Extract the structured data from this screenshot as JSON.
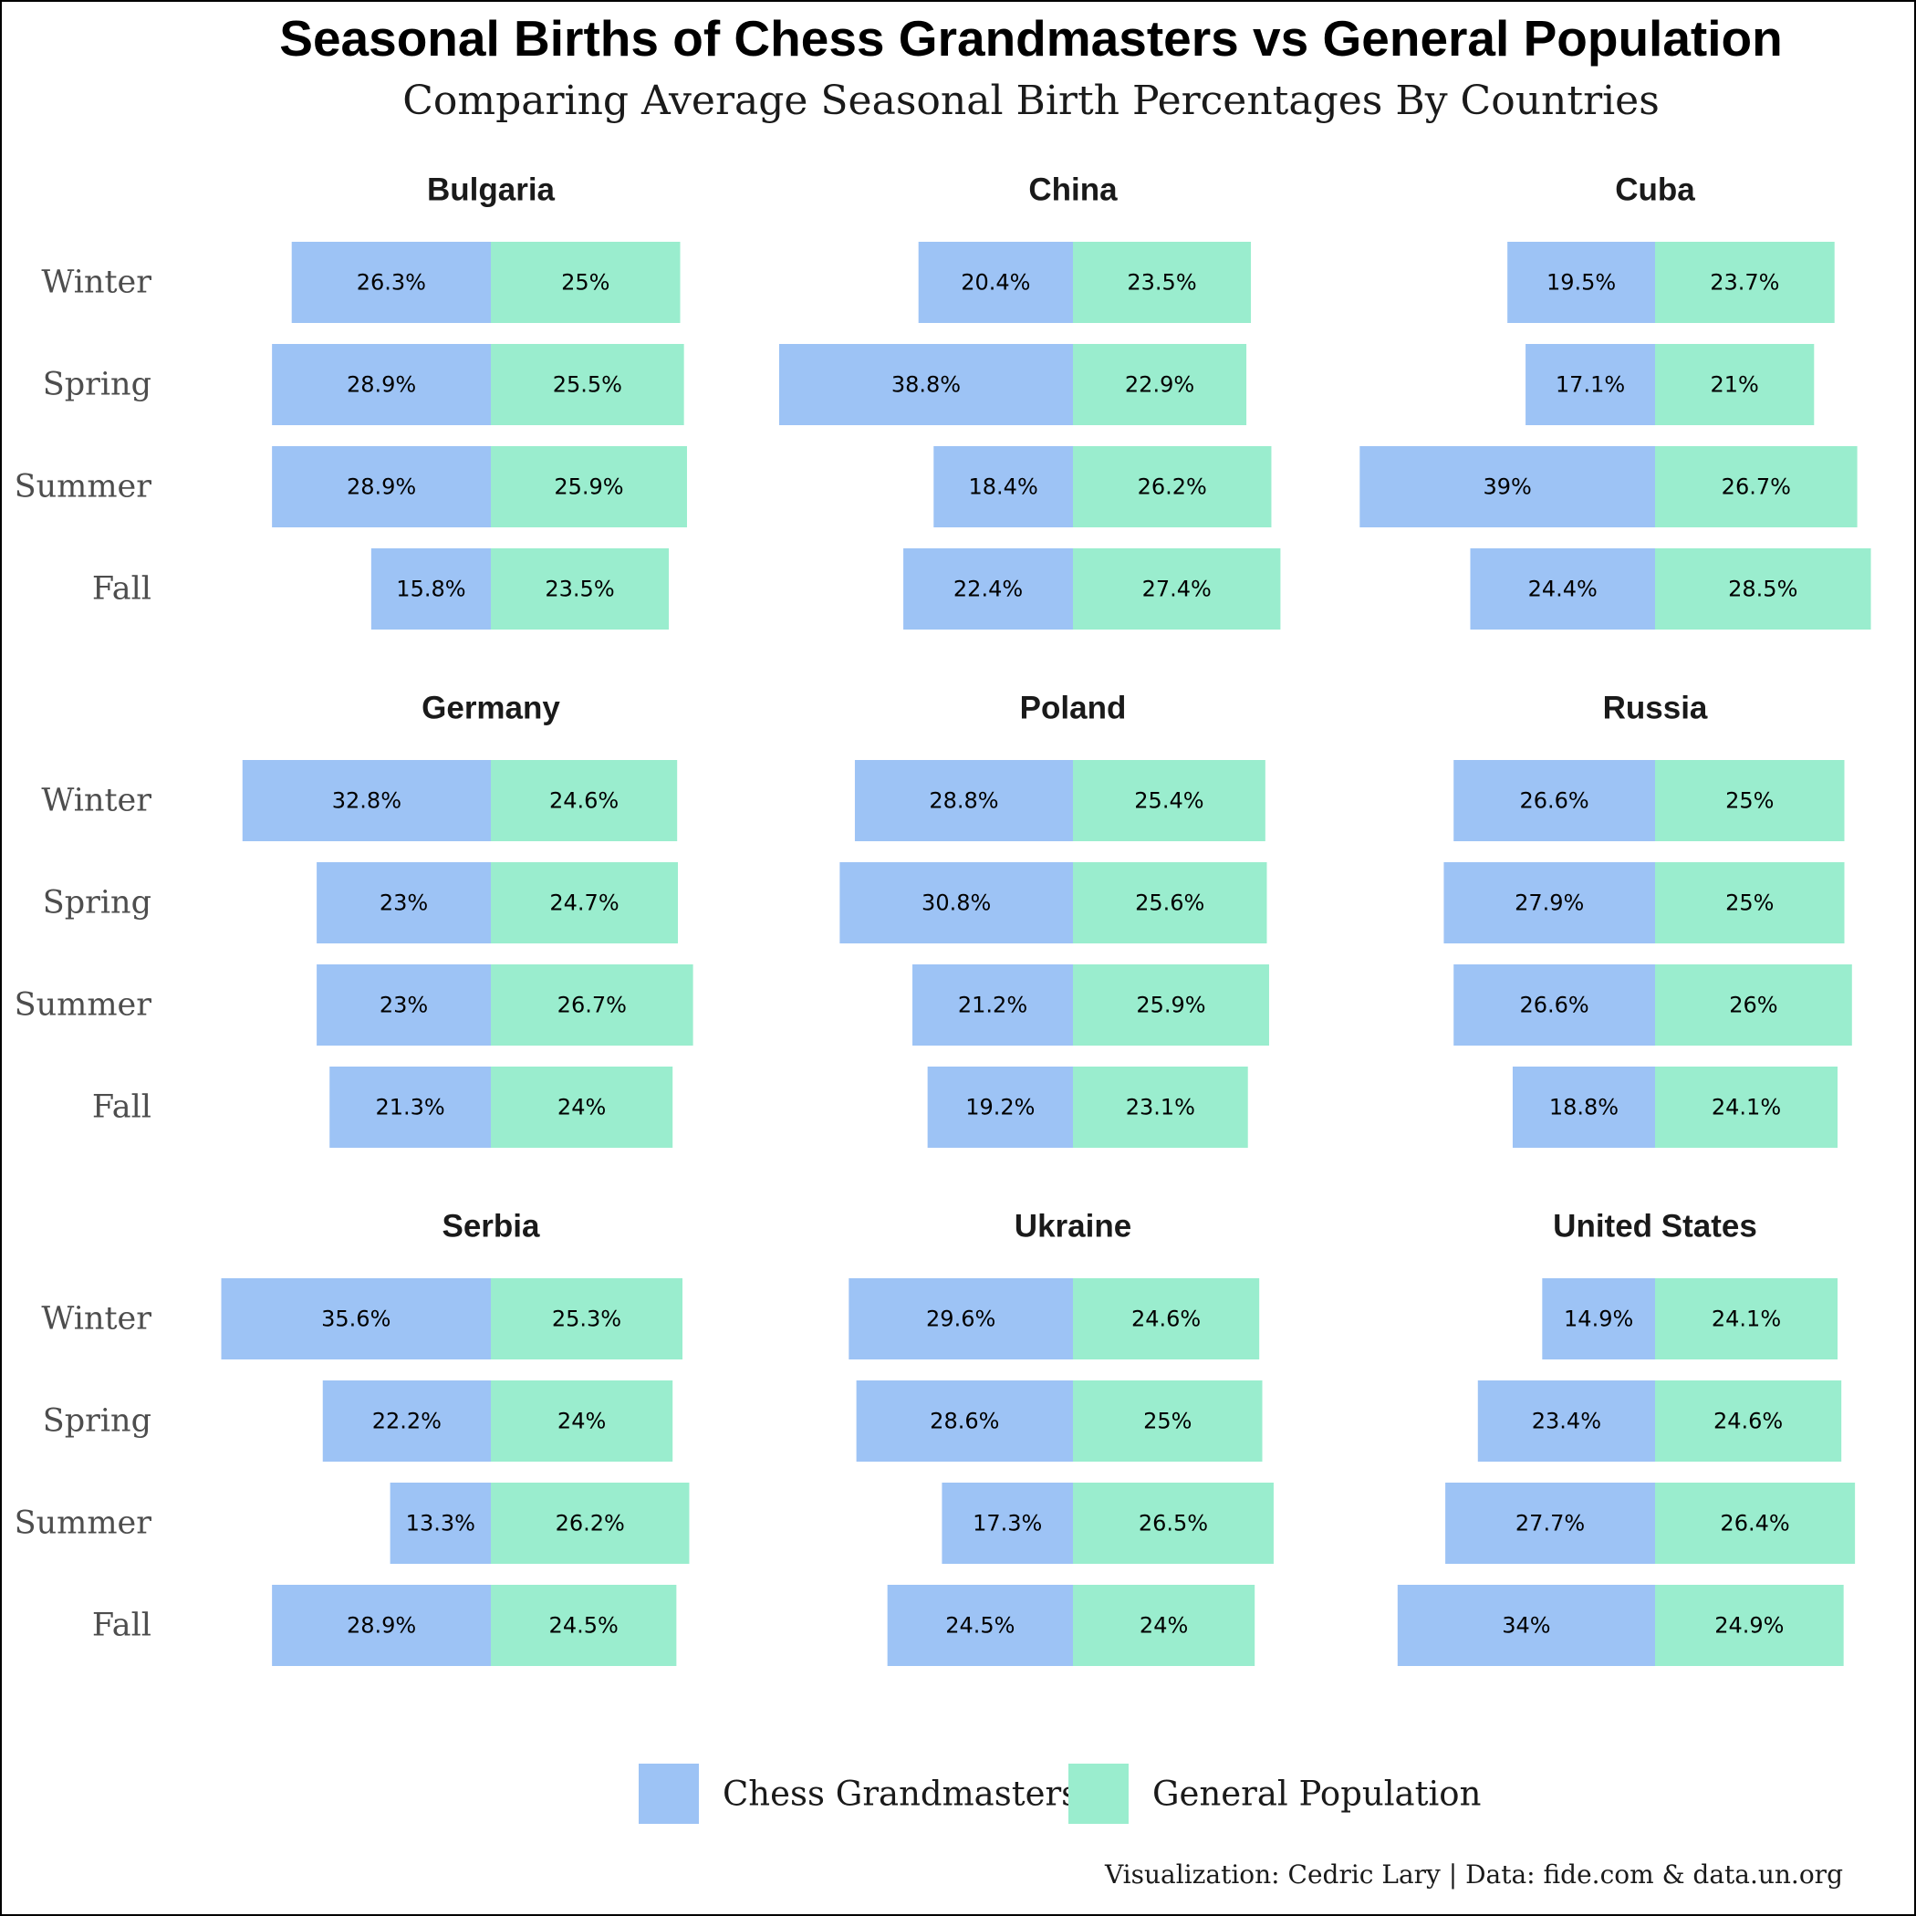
{
  "title": "Seasonal Births of Chess Grandmasters vs General Population",
  "subtitle": "Comparing Average Seasonal Birth Percentages By Countries",
  "caption": "Visualization: Cedric Lary | Data: fide.com & data.un.org",
  "colors": {
    "grandmasters": "#9dc3f5",
    "population": "#9aedce"
  },
  "chart_data": {
    "type": "bar",
    "orientation": "diverging-horizontal",
    "seasons": [
      "Winter",
      "Spring",
      "Summer",
      "Fall"
    ],
    "legend": {
      "position": "bottom",
      "entries": [
        "Chess Grandmasters",
        "General Population"
      ]
    },
    "panels": [
      {
        "country": "Bulgaria",
        "grandmasters": [
          26.3,
          28.9,
          28.9,
          15.8
        ],
        "grandmasters_labels": [
          "26.3%",
          "28.9%",
          "28.9%",
          "15.8%"
        ],
        "population": [
          25,
          25.5,
          25.9,
          23.5
        ],
        "population_labels": [
          "25%",
          "25.5%",
          "25.9%",
          "23.5%"
        ]
      },
      {
        "country": "China",
        "grandmasters": [
          20.4,
          38.8,
          18.4,
          22.4
        ],
        "grandmasters_labels": [
          "20.4%",
          "38.8%",
          "18.4%",
          "22.4%"
        ],
        "population": [
          23.5,
          22.9,
          26.2,
          27.4
        ],
        "population_labels": [
          "23.5%",
          "22.9%",
          "26.2%",
          "27.4%"
        ]
      },
      {
        "country": "Cuba",
        "grandmasters": [
          19.5,
          17.1,
          39,
          24.4
        ],
        "grandmasters_labels": [
          "19.5%",
          "17.1%",
          "39%",
          "24.4%"
        ],
        "population": [
          23.7,
          21,
          26.7,
          28.5
        ],
        "population_labels": [
          "23.7%",
          "21%",
          "26.7%",
          "28.5%"
        ]
      },
      {
        "country": "Germany",
        "grandmasters": [
          32.8,
          23,
          23,
          21.3
        ],
        "grandmasters_labels": [
          "32.8%",
          "23%",
          "23%",
          "21.3%"
        ],
        "population": [
          24.6,
          24.7,
          26.7,
          24
        ],
        "population_labels": [
          "24.6%",
          "24.7%",
          "26.7%",
          "24%"
        ]
      },
      {
        "country": "Poland",
        "grandmasters": [
          28.8,
          30.8,
          21.2,
          19.2
        ],
        "grandmasters_labels": [
          "28.8%",
          "30.8%",
          "21.2%",
          "19.2%"
        ],
        "population": [
          25.4,
          25.6,
          25.9,
          23.1
        ],
        "population_labels": [
          "25.4%",
          "25.6%",
          "25.9%",
          "23.1%"
        ]
      },
      {
        "country": "Russia",
        "grandmasters": [
          26.6,
          27.9,
          26.6,
          18.8
        ],
        "grandmasters_labels": [
          "26.6%",
          "27.9%",
          "26.6%",
          "18.8%"
        ],
        "population": [
          25,
          25,
          26,
          24.1
        ],
        "population_labels": [
          "25%",
          "25%",
          "26%",
          "24.1%"
        ]
      },
      {
        "country": "Serbia",
        "grandmasters": [
          35.6,
          22.2,
          13.3,
          28.9
        ],
        "grandmasters_labels": [
          "35.6%",
          "22.2%",
          "13.3%",
          "28.9%"
        ],
        "population": [
          25.3,
          24,
          26.2,
          24.5
        ],
        "population_labels": [
          "25.3%",
          "24%",
          "26.2%",
          "24.5%"
        ]
      },
      {
        "country": "Ukraine",
        "grandmasters": [
          29.6,
          28.6,
          17.3,
          24.5
        ],
        "grandmasters_labels": [
          "29.6%",
          "28.6%",
          "17.3%",
          "24.5%"
        ],
        "population": [
          24.6,
          25,
          26.5,
          24
        ],
        "population_labels": [
          "24.6%",
          "25%",
          "26.5%",
          "24%"
        ]
      },
      {
        "country": "United States",
        "grandmasters": [
          14.9,
          23.4,
          27.7,
          34
        ],
        "grandmasters_labels": [
          "14.9%",
          "23.4%",
          "27.7%",
          "34%"
        ],
        "population": [
          24.1,
          24.6,
          26.4,
          24.9
        ],
        "population_labels": [
          "24.1%",
          "24.6%",
          "26.4%",
          "24.9%"
        ]
      }
    ]
  }
}
